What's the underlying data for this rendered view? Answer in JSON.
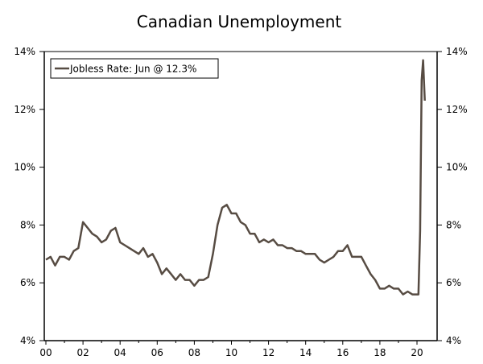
{
  "chart_data": {
    "type": "line",
    "title": "Canadian Unemployment",
    "xlabel": "",
    "ylabel": "",
    "xlim": [
      2000,
      2021
    ],
    "ylim": [
      4,
      14
    ],
    "x_ticks": [
      2000,
      2002,
      2004,
      2006,
      2008,
      2010,
      2012,
      2014,
      2016,
      2018,
      2020
    ],
    "x_tick_labels": [
      "00",
      "02",
      "04",
      "06",
      "08",
      "10",
      "12",
      "14",
      "16",
      "18",
      "20"
    ],
    "y_ticks": [
      4,
      6,
      8,
      10,
      12,
      14
    ],
    "y_tick_labels": [
      "4%",
      "6%",
      "8%",
      "10%",
      "12%",
      "14%"
    ],
    "grid": false,
    "legend_placement": "top-left",
    "series": [
      {
        "name": "Jobless Rate: Jun @ 12.3%",
        "color": "#574c43",
        "points": [
          [
            2000.0,
            6.8
          ],
          [
            2000.25,
            6.9
          ],
          [
            2000.5,
            6.6
          ],
          [
            2000.75,
            6.9
          ],
          [
            2001.0,
            6.9
          ],
          [
            2001.25,
            6.8
          ],
          [
            2001.5,
            7.1
          ],
          [
            2001.75,
            7.2
          ],
          [
            2002.0,
            8.1
          ],
          [
            2002.25,
            7.9
          ],
          [
            2002.5,
            7.7
          ],
          [
            2002.75,
            7.6
          ],
          [
            2003.0,
            7.4
          ],
          [
            2003.25,
            7.5
          ],
          [
            2003.5,
            7.8
          ],
          [
            2003.75,
            7.9
          ],
          [
            2004.0,
            7.4
          ],
          [
            2004.25,
            7.3
          ],
          [
            2004.5,
            7.2
          ],
          [
            2004.75,
            7.1
          ],
          [
            2005.0,
            7.0
          ],
          [
            2005.25,
            7.2
          ],
          [
            2005.5,
            6.9
          ],
          [
            2005.75,
            7.0
          ],
          [
            2006.0,
            6.7
          ],
          [
            2006.25,
            6.3
          ],
          [
            2006.5,
            6.5
          ],
          [
            2006.75,
            6.3
          ],
          [
            2007.0,
            6.1
          ],
          [
            2007.25,
            6.3
          ],
          [
            2007.5,
            6.1
          ],
          [
            2007.75,
            6.1
          ],
          [
            2008.0,
            5.9
          ],
          [
            2008.25,
            6.1
          ],
          [
            2008.5,
            6.1
          ],
          [
            2008.75,
            6.2
          ],
          [
            2009.0,
            7.0
          ],
          [
            2009.25,
            8.0
          ],
          [
            2009.5,
            8.6
          ],
          [
            2009.75,
            8.7
          ],
          [
            2010.0,
            8.4
          ],
          [
            2010.25,
            8.4
          ],
          [
            2010.5,
            8.1
          ],
          [
            2010.75,
            8.0
          ],
          [
            2011.0,
            7.7
          ],
          [
            2011.25,
            7.7
          ],
          [
            2011.5,
            7.4
          ],
          [
            2011.75,
            7.5
          ],
          [
            2012.0,
            7.4
          ],
          [
            2012.25,
            7.5
          ],
          [
            2012.5,
            7.3
          ],
          [
            2012.75,
            7.3
          ],
          [
            2013.0,
            7.2
          ],
          [
            2013.25,
            7.2
          ],
          [
            2013.5,
            7.1
          ],
          [
            2013.75,
            7.1
          ],
          [
            2014.0,
            7.0
          ],
          [
            2014.25,
            7.0
          ],
          [
            2014.5,
            7.0
          ],
          [
            2014.75,
            6.8
          ],
          [
            2015.0,
            6.7
          ],
          [
            2015.25,
            6.8
          ],
          [
            2015.5,
            6.9
          ],
          [
            2015.75,
            7.1
          ],
          [
            2016.0,
            7.1
          ],
          [
            2016.25,
            7.3
          ],
          [
            2016.5,
            6.9
          ],
          [
            2016.75,
            6.9
          ],
          [
            2017.0,
            6.9
          ],
          [
            2017.25,
            6.6
          ],
          [
            2017.5,
            6.3
          ],
          [
            2017.75,
            6.1
          ],
          [
            2018.0,
            5.8
          ],
          [
            2018.25,
            5.8
          ],
          [
            2018.5,
            5.9
          ],
          [
            2018.75,
            5.8
          ],
          [
            2019.0,
            5.8
          ],
          [
            2019.25,
            5.6
          ],
          [
            2019.5,
            5.7
          ],
          [
            2019.75,
            5.6
          ],
          [
            2019.92,
            5.6
          ],
          [
            2020.0,
            5.6
          ],
          [
            2020.08,
            5.6
          ],
          [
            2020.17,
            7.8
          ],
          [
            2020.25,
            13.0
          ],
          [
            2020.33,
            13.7
          ],
          [
            2020.42,
            12.3
          ]
        ]
      }
    ]
  }
}
